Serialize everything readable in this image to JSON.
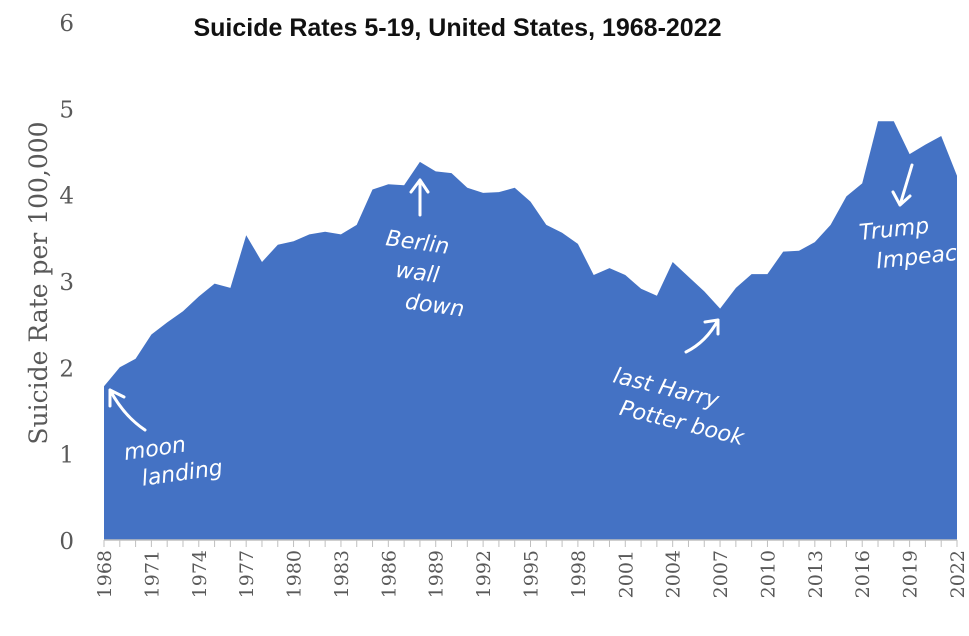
{
  "chart_data": {
    "type": "area",
    "title": "Suicide Rates 5-19, United States, 1968-2022",
    "ylabel": "Suicide Rate per 100,000",
    "xlabel": "",
    "ylim": [
      0,
      6
    ],
    "y_ticks": [
      "0",
      "1",
      "2",
      "3",
      "4",
      "5",
      "6"
    ],
    "x_tick_labels": [
      "1968",
      "1971",
      "1974",
      "1977",
      "1980",
      "1983",
      "1986",
      "1989",
      "1992",
      "1995",
      "1998",
      "2001",
      "2004",
      "2007",
      "2010",
      "2013",
      "2016",
      "2019",
      "2022"
    ],
    "grid": false,
    "color": "#4472c4",
    "x": [
      1968,
      1969,
      1970,
      1971,
      1972,
      1973,
      1974,
      1975,
      1976,
      1977,
      1978,
      1979,
      1980,
      1981,
      1982,
      1983,
      1984,
      1985,
      1986,
      1987,
      1988,
      1989,
      1990,
      1991,
      1992,
      1993,
      1994,
      1995,
      1996,
      1997,
      1998,
      1999,
      2000,
      2001,
      2002,
      2003,
      2004,
      2005,
      2006,
      2007,
      2008,
      2009,
      2010,
      2011,
      2012,
      2013,
      2014,
      2015,
      2016,
      2017,
      2018,
      2019,
      2020,
      2021,
      2022
    ],
    "values": [
      1.78,
      2.0,
      2.1,
      2.38,
      2.52,
      2.65,
      2.82,
      2.97,
      2.92,
      3.53,
      3.22,
      3.42,
      3.46,
      3.54,
      3.57,
      3.54,
      3.65,
      4.06,
      4.12,
      4.11,
      4.38,
      4.27,
      4.25,
      4.08,
      4.02,
      4.03,
      4.08,
      3.92,
      3.65,
      3.56,
      3.43,
      3.07,
      3.15,
      3.07,
      2.91,
      2.83,
      3.22,
      3.05,
      2.88,
      2.68,
      2.92,
      3.08,
      3.08,
      3.34,
      3.35,
      3.45,
      3.65,
      3.98,
      4.13,
      4.85,
      4.85,
      4.47,
      4.58,
      4.68,
      4.22
    ],
    "annotations": [
      {
        "text": [
          "moon",
          "landing"
        ],
        "x": 1969
      },
      {
        "text": [
          "Berlin",
          "wall",
          "down"
        ],
        "x": 1989
      },
      {
        "text": [
          "last Harry",
          "Potter book"
        ],
        "x": 2007
      },
      {
        "text": [
          "Trump",
          "Impeached"
        ],
        "x": 2019
      }
    ]
  }
}
